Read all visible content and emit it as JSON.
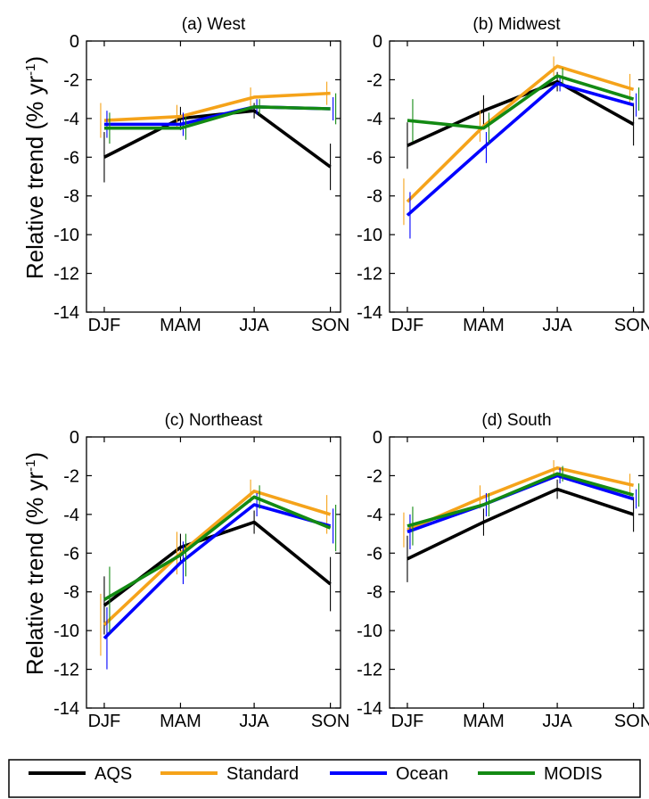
{
  "ylabel": "Relative trend (% yr",
  "ylabel_sup": "-1",
  "ylabel_close": ")",
  "legend": [
    {
      "name": "AQS",
      "color": "#000000"
    },
    {
      "name": "Standard",
      "color": "#f5a31a"
    },
    {
      "name": "Ocean",
      "color": "#0000ff"
    },
    {
      "name": "MODIS",
      "color": "#138a13"
    }
  ],
  "chart_data": [
    {
      "type": "line",
      "title": "(a) West",
      "categories": [
        "DJF",
        "MAM",
        "JJA",
        "SON"
      ],
      "ylim": [
        -14,
        0
      ],
      "yticks": [
        0,
        -2,
        -4,
        -6,
        -8,
        -10,
        -12,
        -14
      ],
      "series": [
        {
          "name": "AQS",
          "values": [
            -6.0,
            -4.0,
            -3.6,
            -6.5
          ],
          "err": [
            1.3,
            0.6,
            0.4,
            1.2
          ]
        },
        {
          "name": "Standard",
          "values": [
            -4.1,
            -3.9,
            -2.9,
            -2.7
          ],
          "err": [
            0.9,
            0.6,
            0.5,
            0.6
          ]
        },
        {
          "name": "Ocean",
          "values": [
            -4.3,
            -4.3,
            -3.4,
            -3.5
          ],
          "err": [
            0.7,
            0.6,
            0.4,
            0.6
          ]
        },
        {
          "name": "MODIS",
          "values": [
            -4.5,
            -4.5,
            -3.4,
            -3.5
          ],
          "err": [
            0.8,
            0.6,
            0.4,
            0.8
          ]
        }
      ]
    },
    {
      "type": "line",
      "title": "(b) Midwest",
      "categories": [
        "DJF",
        "MAM",
        "JJA",
        "SON"
      ],
      "ylim": [
        -14,
        0
      ],
      "yticks": [
        0,
        -2,
        -4,
        -6,
        -8,
        -10,
        -12,
        -14
      ],
      "series": [
        {
          "name": "AQS",
          "values": [
            -5.4,
            -3.6,
            -2.1,
            -4.3
          ],
          "err": [
            1.2,
            0.8,
            0.5,
            1.1
          ]
        },
        {
          "name": "Standard",
          "values": [
            -8.3,
            -4.4,
            -1.3,
            -2.5
          ],
          "err": [
            1.2,
            0.8,
            0.5,
            0.8
          ]
        },
        {
          "name": "Ocean",
          "values": [
            -9.0,
            -5.5,
            -2.2,
            -3.3
          ],
          "err": [
            1.2,
            0.8,
            0.4,
            0.6
          ]
        },
        {
          "name": "MODIS",
          "values": [
            -4.1,
            -4.5,
            -1.8,
            -3.0
          ],
          "err": [
            1.1,
            0.8,
            0.4,
            0.6
          ]
        }
      ]
    },
    {
      "type": "line",
      "title": "(c) Northeast",
      "categories": [
        "DJF",
        "MAM",
        "JJA",
        "SON"
      ],
      "ylim": [
        -14,
        0
      ],
      "yticks": [
        0,
        -2,
        -4,
        -6,
        -8,
        -10,
        -12,
        -14
      ],
      "series": [
        {
          "name": "AQS",
          "values": [
            -8.7,
            -5.7,
            -4.4,
            -7.6
          ],
          "err": [
            1.5,
            0.7,
            0.6,
            1.4
          ]
        },
        {
          "name": "Standard",
          "values": [
            -9.7,
            -6.0,
            -2.8,
            -4.0
          ],
          "err": [
            1.6,
            1.1,
            0.6,
            1.0
          ]
        },
        {
          "name": "Ocean",
          "values": [
            -10.4,
            -6.5,
            -3.5,
            -4.6
          ],
          "err": [
            1.6,
            1.1,
            0.6,
            0.9
          ]
        },
        {
          "name": "MODIS",
          "values": [
            -8.4,
            -6.1,
            -3.1,
            -4.7
          ],
          "err": [
            1.7,
            1.1,
            0.6,
            1.2
          ]
        }
      ]
    },
    {
      "type": "line",
      "title": "(d) South",
      "categories": [
        "DJF",
        "MAM",
        "JJA",
        "SON"
      ],
      "ylim": [
        -14,
        0
      ],
      "yticks": [
        0,
        -2,
        -4,
        -6,
        -8,
        -10,
        -12,
        -14
      ],
      "series": [
        {
          "name": "AQS",
          "values": [
            -6.3,
            -4.4,
            -2.7,
            -4.0
          ],
          "err": [
            1.2,
            0.7,
            0.5,
            0.9
          ]
        },
        {
          "name": "Standard",
          "values": [
            -4.8,
            -3.1,
            -1.6,
            -2.5
          ],
          "err": [
            0.9,
            0.6,
            0.4,
            0.6
          ]
        },
        {
          "name": "Ocean",
          "values": [
            -4.9,
            -3.5,
            -2.0,
            -3.2
          ],
          "err": [
            0.9,
            0.6,
            0.4,
            0.5
          ]
        },
        {
          "name": "MODIS",
          "values": [
            -4.6,
            -3.5,
            -1.9,
            -3.0
          ],
          "err": [
            1.0,
            0.6,
            0.4,
            0.6
          ]
        }
      ]
    }
  ]
}
